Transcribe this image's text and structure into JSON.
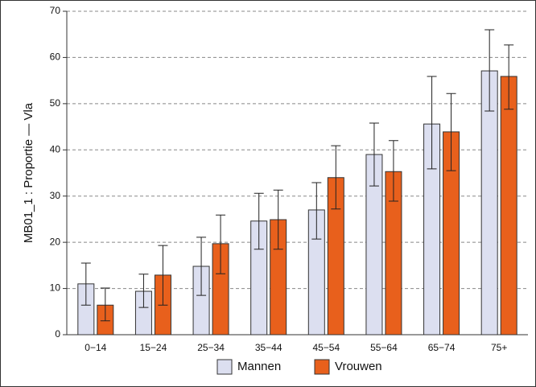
{
  "chart_data": {
    "type": "bar",
    "y_label": "MB01_1 : Proportie — Vla",
    "categories": [
      "0−14",
      "15−24",
      "25−34",
      "35−44",
      "45−54",
      "55−64",
      "65−74",
      "75+"
    ],
    "series": [
      {
        "name": "Mannen",
        "color": "#dcdff0",
        "values": [
          11.0,
          9.4,
          14.8,
          24.6,
          27.0,
          39.0,
          45.6,
          57.1
        ],
        "lower": [
          6.4,
          5.9,
          8.5,
          18.5,
          20.7,
          32.2,
          35.9,
          48.4
        ],
        "upper": [
          15.5,
          13.1,
          21.1,
          30.6,
          32.9,
          45.8,
          55.9,
          66.0
        ]
      },
      {
        "name": "Vrouwen",
        "color": "#e8601c",
        "values": [
          6.4,
          12.9,
          19.7,
          24.9,
          34.0,
          35.3,
          43.9,
          55.9
        ],
        "lower": [
          3.0,
          6.4,
          13.2,
          18.5,
          27.2,
          28.9,
          35.5,
          48.8
        ],
        "upper": [
          10.1,
          19.3,
          25.9,
          31.3,
          40.9,
          42.0,
          52.2,
          62.7
        ]
      }
    ],
    "ylim": [
      0,
      70
    ],
    "yticks": [
      0,
      10,
      20,
      30,
      40,
      50,
      60,
      70
    ],
    "grid": true
  }
}
